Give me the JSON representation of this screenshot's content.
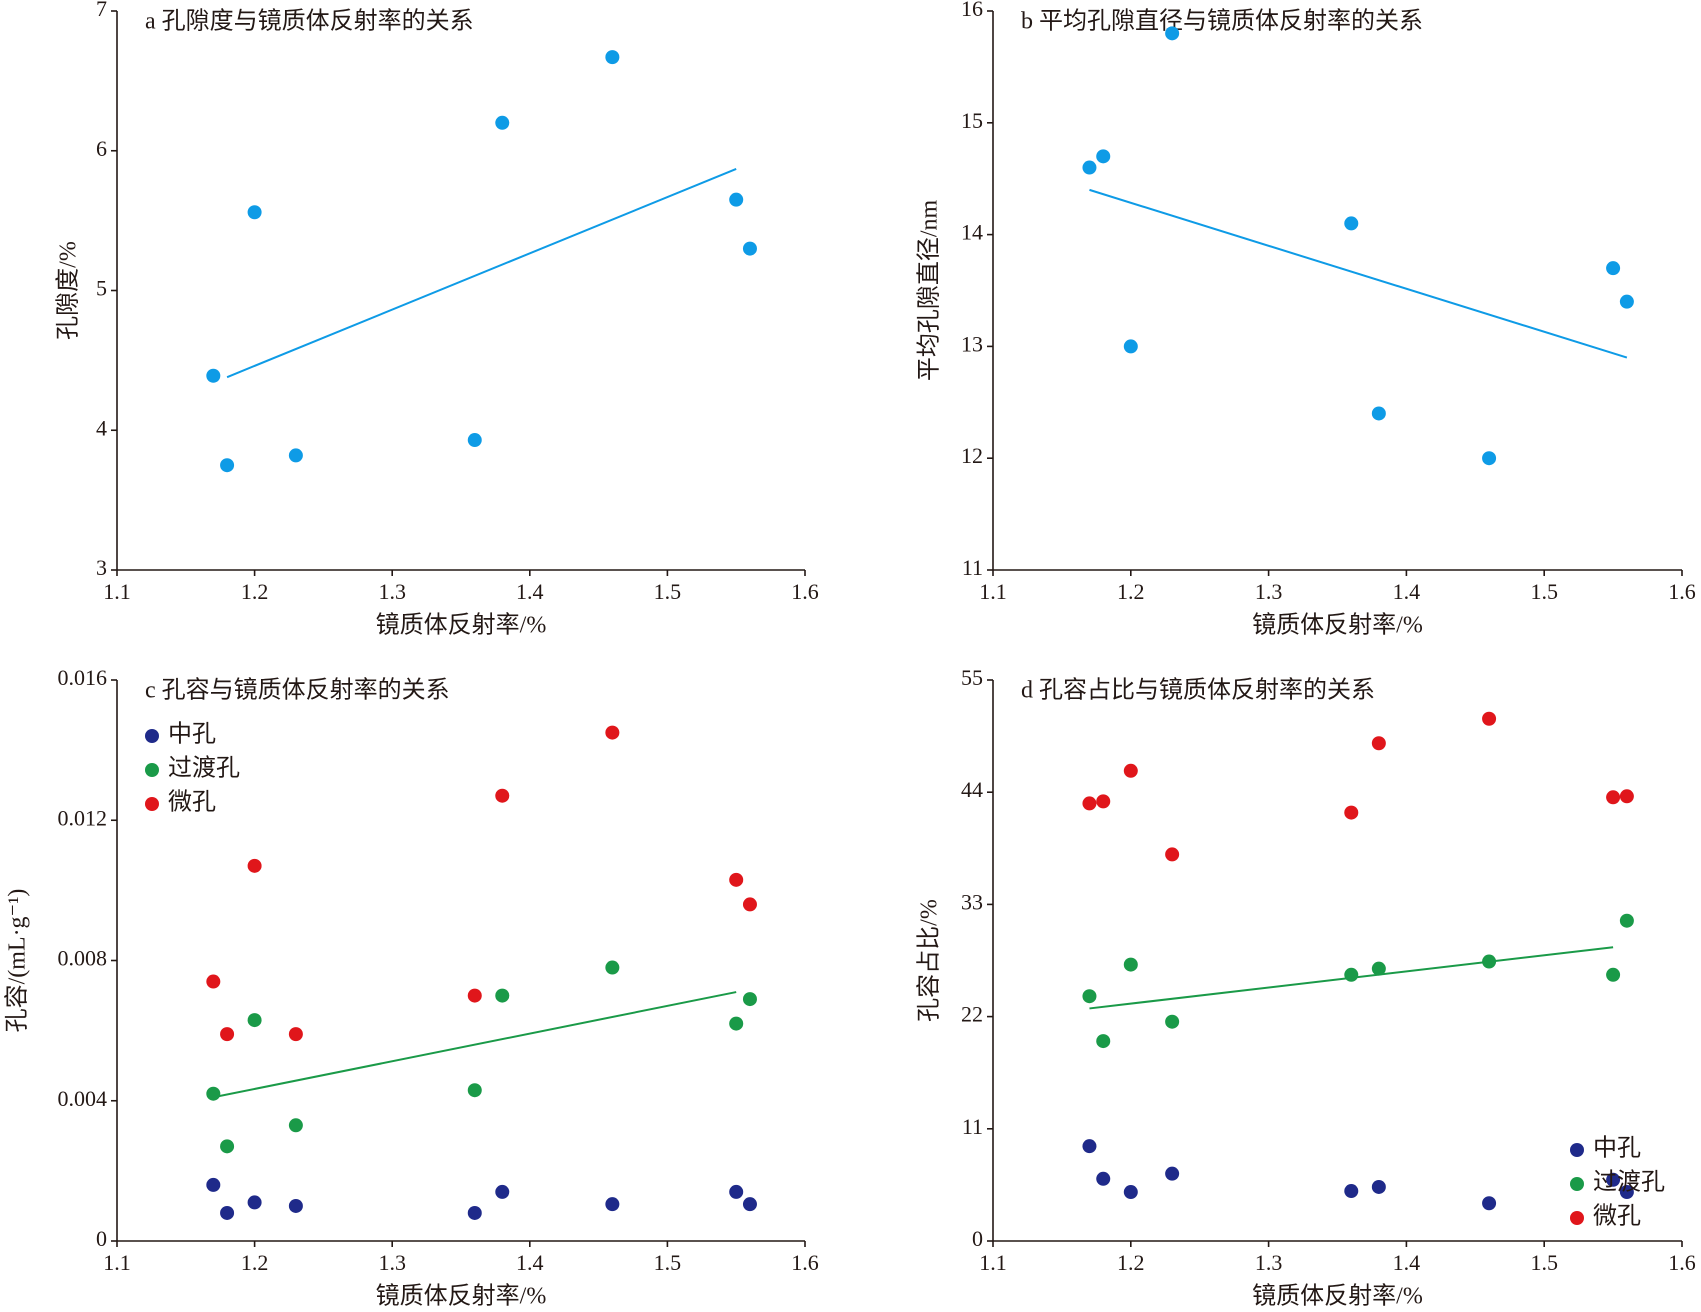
{
  "chart_data": [
    {
      "type": "scatter",
      "title": "a 孔隙度与镜质体反射率的关系",
      "xlabel": "镜质体反射率/%",
      "ylabel": "孔隙度/%",
      "xlim": [
        1.1,
        1.6
      ],
      "xticks": [
        1.1,
        1.2,
        1.3,
        1.4,
        1.5,
        1.6
      ],
      "ylim": [
        3,
        7
      ],
      "yticks": [
        3,
        4,
        5,
        6,
        7
      ],
      "x": [
        1.17,
        1.18,
        1.2,
        1.23,
        1.36,
        1.38,
        1.46,
        1.55,
        1.56
      ],
      "series": [
        {
          "color": "#0e9be6",
          "values": [
            4.39,
            3.75,
            5.56,
            3.82,
            3.93,
            6.2,
            6.67,
            5.65,
            5.3
          ]
        }
      ],
      "trendline": {
        "x": [
          1.18,
          1.55
        ],
        "values": [
          4.38,
          5.87
        ],
        "color": "#0e9be6"
      }
    },
    {
      "type": "scatter",
      "title": "b 平均孔隙直径与镜质体反射率的关系",
      "xlabel": "镜质体反射率/%",
      "ylabel": "平均孔隙直径/nm",
      "xlim": [
        1.1,
        1.6
      ],
      "xticks": [
        1.1,
        1.2,
        1.3,
        1.4,
        1.5,
        1.6
      ],
      "ylim": [
        11,
        16
      ],
      "yticks": [
        11,
        12,
        13,
        14,
        15,
        16
      ],
      "x": [
        1.17,
        1.18,
        1.2,
        1.23,
        1.36,
        1.38,
        1.46,
        1.55,
        1.56
      ],
      "series": [
        {
          "color": "#0e9be6",
          "values": [
            14.6,
            14.7,
            13.0,
            15.8,
            14.1,
            12.4,
            12.0,
            13.7,
            13.4
          ]
        }
      ],
      "trendline": {
        "x": [
          1.17,
          1.56
        ],
        "values": [
          14.4,
          12.9
        ],
        "color": "#0e9be6"
      }
    },
    {
      "type": "scatter",
      "title": "c 孔容与镜质体反射率的关系",
      "xlabel": "镜质体反射率/%",
      "ylabel": "孔容/(mL·g⁻¹)",
      "xlim": [
        1.1,
        1.6
      ],
      "xticks": [
        1.1,
        1.2,
        1.3,
        1.4,
        1.5,
        1.6
      ],
      "ylim": [
        0,
        0.016
      ],
      "yticks": [
        0,
        0.004,
        0.008,
        0.012,
        0.016
      ],
      "x": [
        1.17,
        1.18,
        1.2,
        1.23,
        1.36,
        1.38,
        1.46,
        1.55,
        1.56
      ],
      "legend": "upper left",
      "series": [
        {
          "name": "中孔",
          "color": "#1f2a8a",
          "values": [
            0.0016,
            0.0008,
            0.0011,
            0.001,
            0.0008,
            0.0014,
            0.00105,
            0.0014,
            0.00105
          ]
        },
        {
          "name": "过渡孔",
          "color": "#1a9a48",
          "values": [
            0.0042,
            0.0027,
            0.0063,
            0.0033,
            0.0043,
            0.007,
            0.0078,
            0.0062,
            0.0069
          ]
        },
        {
          "name": "微孔",
          "color": "#e0161b",
          "values": [
            0.0074,
            0.0059,
            0.0107,
            0.0059,
            0.007,
            0.0127,
            0.0145,
            0.0103,
            0.0096
          ]
        }
      ],
      "trendline": {
        "x": [
          1.17,
          1.55
        ],
        "values": [
          0.0041,
          0.0071
        ],
        "color": "#1a9a48"
      }
    },
    {
      "type": "scatter",
      "title": "d 孔容占比与镜质体反射率的关系",
      "xlabel": "镜质体反射率/%",
      "ylabel": "孔容占比/%",
      "xlim": [
        1.1,
        1.6
      ],
      "xticks": [
        1.1,
        1.2,
        1.3,
        1.4,
        1.5,
        1.6
      ],
      "ylim": [
        0,
        55
      ],
      "yticks": [
        0,
        11,
        22,
        33,
        44,
        55
      ],
      "x": [
        1.17,
        1.18,
        1.2,
        1.23,
        1.36,
        1.38,
        1.46,
        1.55,
        1.56
      ],
      "legend": "lower right",
      "series": [
        {
          "name": "中孔",
          "color": "#1f2a8a",
          "values": [
            9.3,
            6.1,
            4.8,
            6.6,
            4.9,
            5.3,
            3.7,
            6.0,
            4.8
          ]
        },
        {
          "name": "过渡孔",
          "color": "#1a9a48",
          "values": [
            24.0,
            19.6,
            27.1,
            21.5,
            26.1,
            26.7,
            27.4,
            26.1,
            31.4
          ]
        },
        {
          "name": "微孔",
          "color": "#e0161b",
          "values": [
            42.9,
            43.1,
            46.1,
            37.9,
            42.0,
            48.8,
            51.2,
            43.5,
            43.6
          ]
        }
      ],
      "trendline": {
        "x": [
          1.17,
          1.55
        ],
        "values": [
          22.8,
          28.8
        ],
        "color": "#1a9a48"
      }
    }
  ]
}
